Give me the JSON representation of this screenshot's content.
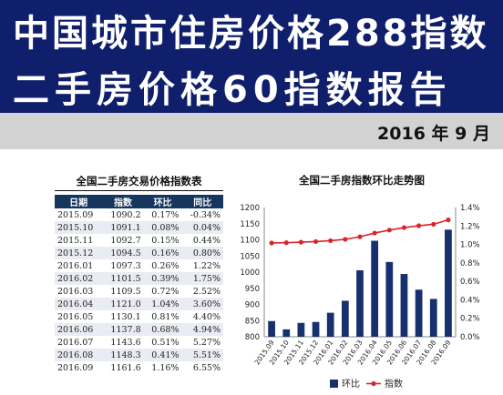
{
  "header": {
    "title_line1": "中国城市住房价格288指数",
    "title_line2": "二手房价格60指数报告",
    "date": "2016 年 9 月"
  },
  "table": {
    "title": "全国二手房交易价格指数表",
    "columns": [
      "日期",
      "指数",
      "环比",
      "同比"
    ],
    "rows": [
      [
        "2015.09",
        "1090.2",
        "0.17%",
        "-0.34%"
      ],
      [
        "2015.10",
        "1091.1",
        "0.08%",
        "0.04%"
      ],
      [
        "2015.11",
        "1092.7",
        "0.15%",
        "0.44%"
      ],
      [
        "2015.12",
        "1094.5",
        "0.16%",
        "0.80%"
      ],
      [
        "2016.01",
        "1097.3",
        "0.26%",
        "1.22%"
      ],
      [
        "2016.02",
        "1101.5",
        "0.39%",
        "1.75%"
      ],
      [
        "2016.03",
        "1109.5",
        "0.72%",
        "2.52%"
      ],
      [
        "2016.04",
        "1121.0",
        "1.04%",
        "3.60%"
      ],
      [
        "2016.05",
        "1130.1",
        "0.81%",
        "4.40%"
      ],
      [
        "2016.06",
        "1137.8",
        "0.68%",
        "4.94%"
      ],
      [
        "2016.07",
        "1143.6",
        "0.51%",
        "5.27%"
      ],
      [
        "2016.08",
        "1148.3",
        "0.41%",
        "5.51%"
      ],
      [
        "2016.09",
        "1161.6",
        "1.16%",
        "6.55%"
      ]
    ]
  },
  "chart_data": {
    "type": "bar",
    "title": "全国二手房指数环比走势图",
    "categories": [
      "2015.09",
      "2015.10",
      "2015.11",
      "2015.12",
      "2016.01",
      "2016.02",
      "2016.03",
      "2016.04",
      "2016.05",
      "2016.06",
      "2016.07",
      "2016.08",
      "2016.09"
    ],
    "series": [
      {
        "name": "环比",
        "type": "bar",
        "axis": "right",
        "color": "#17306e",
        "values": [
          0.17,
          0.08,
          0.15,
          0.16,
          0.26,
          0.39,
          0.72,
          1.04,
          0.81,
          0.68,
          0.51,
          0.41,
          1.16
        ]
      },
      {
        "name": "指数",
        "type": "line",
        "axis": "left",
        "color": "#d9262b",
        "values": [
          1090.2,
          1091.1,
          1092.7,
          1094.5,
          1097.3,
          1101.5,
          1109.5,
          1121.0,
          1130.1,
          1137.8,
          1143.6,
          1148.3,
          1161.6
        ]
      }
    ],
    "ylim_left": [
      800,
      1200
    ],
    "yticks_left": [
      "1200",
      "1150",
      "1100",
      "1050",
      "1000",
      "950",
      "900",
      "850",
      "800"
    ],
    "ylim_right": [
      0,
      1.4
    ],
    "yticks_right": [
      "1.4%",
      "1.2%",
      "1.0%",
      "0.8%",
      "0.6%",
      "0.4%",
      "0.2%",
      "0.0%"
    ],
    "legend_position": "bottom",
    "grid": false
  }
}
